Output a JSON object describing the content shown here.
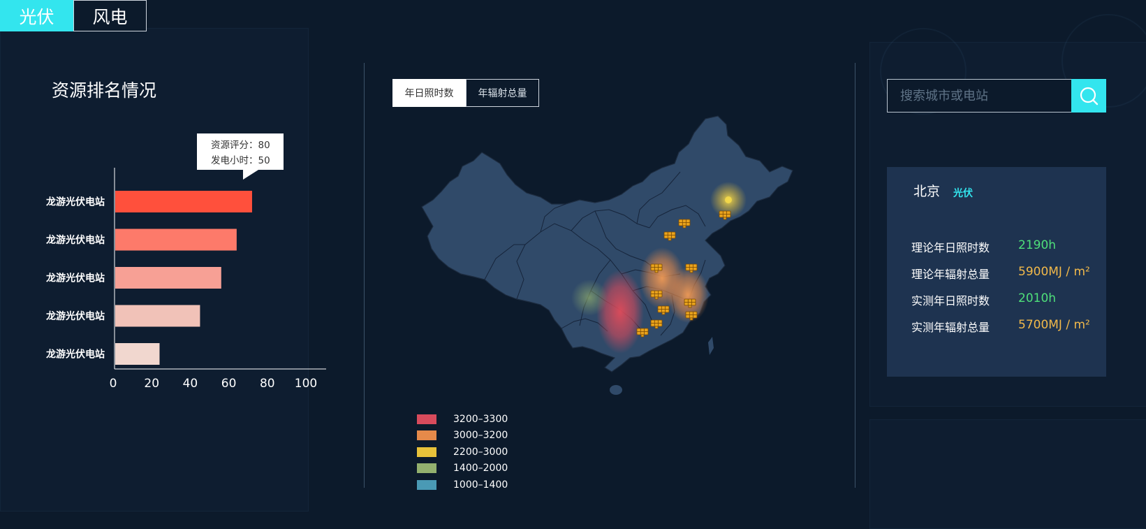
{
  "top_tabs": [
    {
      "label": "光伏",
      "active": true
    },
    {
      "label": "风电",
      "active": false
    }
  ],
  "left_panel": {
    "title": "资源排名情况",
    "tooltip": {
      "line1": "资源评分：80",
      "line2": "发电小时：50"
    }
  },
  "chart_data": {
    "type": "bar",
    "orientation": "horizontal",
    "categories": [
      "龙游光伏电站",
      "龙游光伏电站",
      "龙游光伏电站",
      "龙游光伏电站",
      "龙游光伏电站"
    ],
    "values": [
      71,
      63,
      55,
      44,
      23
    ],
    "bar_colors": [
      "#ff503c",
      "#fd7a6a",
      "#f7a095",
      "#f1c2b8",
      "#f1d7cf"
    ],
    "xlim": [
      0,
      100
    ],
    "xticks": [
      0,
      20,
      40,
      60,
      80,
      100
    ],
    "grid": false
  },
  "map_panel": {
    "tabs": [
      {
        "label": "年日照时数",
        "active": true
      },
      {
        "label": "年辐射总量",
        "active": false
      }
    ],
    "legend": [
      {
        "label": "3200–3300",
        "color": "#d84b5c"
      },
      {
        "label": "3000–3200",
        "color": "#e68a4a"
      },
      {
        "label": "2200–3000",
        "color": "#e8c23a"
      },
      {
        "label": "1400–2000",
        "color": "#93b06e"
      },
      {
        "label": "1000–1400",
        "color": "#4a9ab5"
      }
    ]
  },
  "right_panel": {
    "search": {
      "placeholder": "搜索城市或电站",
      "value": ""
    },
    "card": {
      "city": "北京",
      "type": "光伏",
      "metrics": [
        {
          "label": "理论年日照时数",
          "value": "2190h",
          "color": "#4fe07a"
        },
        {
          "label": "理论年辐射总量",
          "value": "5900MJ / m²",
          "color": "#f2b94a"
        },
        {
          "label": "实测年日照时数",
          "value": "2010h",
          "color": "#4fe07a"
        },
        {
          "label": "实测年辐射总量",
          "value": "5700MJ / m²",
          "color": "#f2b94a"
        }
      ]
    }
  }
}
